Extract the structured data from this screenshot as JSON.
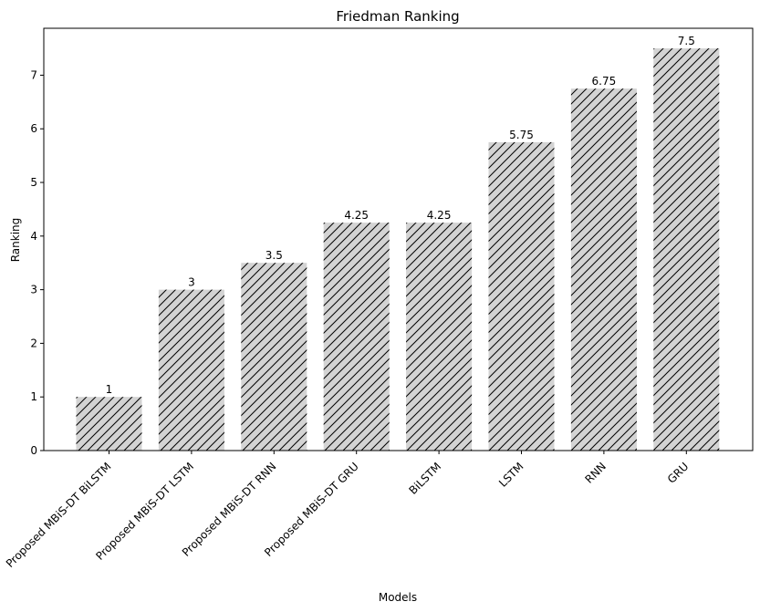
{
  "chart_data": {
    "type": "bar",
    "title": "Friedman Ranking",
    "xlabel": "Models",
    "ylabel": "Ranking",
    "categories": [
      "Proposed MBiS-DT BiLSTM",
      "Proposed MBiS-DT LSTM",
      "Proposed MBiS-DT RNN",
      "Proposed MBiS-DT GRU",
      "BiLSTM",
      "LSTM",
      "RNN",
      "GRU"
    ],
    "values": [
      1,
      3,
      3.5,
      4.25,
      4.25,
      5.75,
      6.75,
      7.5
    ],
    "data_labels": [
      "1",
      "3",
      "3.5",
      "4.25",
      "4.25",
      "5.75",
      "6.75",
      "7.5"
    ],
    "ylim": [
      0,
      7.875
    ],
    "yticks": [
      0,
      1,
      2,
      3,
      4,
      5,
      6,
      7
    ],
    "grid": false,
    "colors": {
      "bar_fill": "#d3d3d3",
      "hatch": "#000000"
    }
  }
}
